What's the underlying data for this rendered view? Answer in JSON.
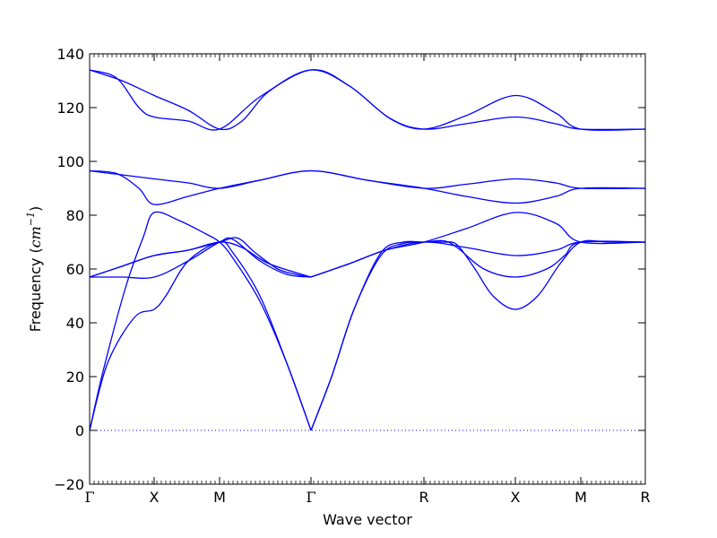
{
  "chart_data": {
    "type": "line",
    "title": "",
    "xlabel": "Wave vector",
    "ylabel": {
      "prefix": "Frequency (",
      "unit_base": "cm",
      "unit_exponent": "−1",
      "suffix": ")"
    },
    "ylim": [
      -20,
      140
    ],
    "yticks": [
      -20,
      0,
      20,
      40,
      60,
      80,
      100,
      120,
      140
    ],
    "ytick_labels": [
      "−20",
      "0",
      "20",
      "40",
      "60",
      "80",
      "100",
      "120",
      "140"
    ],
    "xlim": [
      0,
      6.2
    ],
    "q_points": [
      {
        "label": "Γ",
        "x": 0
      },
      {
        "label": "X",
        "x": 0.72
      },
      {
        "label": "M",
        "x": 1.45
      },
      {
        "label": "Γ",
        "x": 2.47
      },
      {
        "label": "R",
        "x": 3.73
      },
      {
        "label": "X",
        "x": 4.75
      },
      {
        "label": "M",
        "x": 5.48
      },
      {
        "label": "R",
        "x": 6.2
      }
    ],
    "minor_ticks_per_unit": 20,
    "zero_line": {
      "y": 0,
      "style": "dotted"
    },
    "line_color": "#0000ff",
    "series": [
      {
        "points": [
          [
            0,
            0
          ],
          [
            0.2,
            25
          ],
          [
            0.5,
            42
          ],
          [
            0.72,
            45
          ],
          [
            0.85,
            50
          ],
          [
            1.1,
            63
          ],
          [
            1.45,
            70
          ],
          [
            1.6,
            66
          ],
          [
            1.9,
            50
          ],
          [
            2.2,
            25
          ],
          [
            2.47,
            0
          ]
        ]
      },
      {
        "points": [
          [
            0,
            0
          ],
          [
            0.15,
            22
          ],
          [
            0.4,
            53
          ],
          [
            0.6,
            72
          ],
          [
            0.72,
            81
          ],
          [
            1.0,
            78
          ],
          [
            1.3,
            73
          ],
          [
            1.45,
            70
          ],
          [
            1.6,
            64
          ],
          [
            1.9,
            48
          ],
          [
            2.2,
            25
          ],
          [
            2.47,
            0
          ]
        ]
      },
      {
        "points": [
          [
            0,
            57
          ],
          [
            0.36,
            57
          ],
          [
            0.72,
            57
          ],
          [
            1.1,
            63
          ],
          [
            1.45,
            70
          ],
          [
            1.6,
            71
          ],
          [
            1.9,
            63
          ],
          [
            2.2,
            58
          ],
          [
            2.47,
            57
          ]
        ]
      },
      {
        "points": [
          [
            0,
            57
          ],
          [
            0.36,
            61
          ],
          [
            0.72,
            65
          ],
          [
            1.1,
            67
          ],
          [
            1.45,
            70
          ],
          [
            1.65,
            71.5
          ],
          [
            1.85,
            66
          ],
          [
            2.1,
            60
          ],
          [
            2.3,
            58
          ],
          [
            2.47,
            57
          ]
        ]
      },
      {
        "points": [
          [
            0,
            57
          ],
          [
            0.36,
            61
          ],
          [
            0.72,
            65
          ],
          [
            1.1,
            67
          ],
          [
            1.45,
            70
          ],
          [
            1.7,
            68
          ],
          [
            2.0,
            62
          ],
          [
            2.47,
            57
          ]
        ]
      },
      {
        "points": [
          [
            2.47,
            0
          ],
          [
            2.7,
            20
          ],
          [
            2.95,
            45
          ],
          [
            3.25,
            65
          ],
          [
            3.5,
            69.5
          ],
          [
            3.73,
            70
          ],
          [
            3.95,
            70
          ],
          [
            4.1,
            69
          ],
          [
            4.3,
            60
          ],
          [
            4.5,
            50
          ],
          [
            4.75,
            45
          ],
          [
            5.0,
            50
          ],
          [
            5.25,
            62
          ],
          [
            5.48,
            70
          ],
          [
            5.8,
            70
          ],
          [
            6.2,
            70
          ]
        ]
      },
      {
        "points": [
          [
            2.47,
            0
          ],
          [
            2.7,
            20
          ],
          [
            2.95,
            45
          ],
          [
            3.25,
            66
          ],
          [
            3.5,
            70
          ],
          [
            3.73,
            70
          ],
          [
            3.95,
            70.5
          ],
          [
            4.1,
            68
          ],
          [
            4.4,
            60
          ],
          [
            4.75,
            57
          ],
          [
            5.1,
            60
          ],
          [
            5.3,
            65
          ],
          [
            5.48,
            70
          ],
          [
            6.2,
            70
          ]
        ]
      },
      {
        "points": [
          [
            2.47,
            57
          ],
          [
            2.9,
            62
          ],
          [
            3.3,
            67
          ],
          [
            3.73,
            70
          ],
          [
            4.2,
            68
          ],
          [
            4.75,
            65
          ],
          [
            5.2,
            67
          ],
          [
            5.48,
            70
          ],
          [
            6.2,
            70
          ]
        ]
      },
      {
        "points": [
          [
            2.47,
            57
          ],
          [
            2.9,
            62
          ],
          [
            3.3,
            67
          ],
          [
            3.73,
            70
          ],
          [
            4.2,
            75
          ],
          [
            4.75,
            81
          ],
          [
            5.2,
            77
          ],
          [
            5.48,
            70
          ],
          [
            6.2,
            70
          ]
        ]
      },
      {
        "points": [
          [
            0,
            96.5
          ],
          [
            0.3,
            95.5
          ],
          [
            0.55,
            90
          ],
          [
            0.72,
            84
          ],
          [
            1.1,
            87
          ],
          [
            1.45,
            90
          ],
          [
            1.9,
            93
          ],
          [
            2.47,
            96.5
          ],
          [
            3.1,
            93
          ],
          [
            3.73,
            90
          ],
          [
            4.2,
            87
          ],
          [
            4.75,
            84.5
          ],
          [
            5.2,
            87
          ],
          [
            5.48,
            90
          ],
          [
            6.2,
            90
          ]
        ]
      },
      {
        "points": [
          [
            0,
            96.5
          ],
          [
            0.36,
            95
          ],
          [
            0.72,
            93.5
          ],
          [
            1.1,
            92
          ],
          [
            1.45,
            90
          ],
          [
            1.9,
            93
          ],
          [
            2.47,
            96.5
          ],
          [
            3.1,
            93
          ],
          [
            3.73,
            90
          ],
          [
            4.2,
            91.5
          ],
          [
            4.75,
            93.5
          ],
          [
            5.2,
            92
          ],
          [
            5.48,
            90
          ],
          [
            6.2,
            90
          ]
        ]
      },
      {
        "points": [
          [
            0,
            134
          ],
          [
            0.3,
            131
          ],
          [
            0.55,
            120
          ],
          [
            0.72,
            116.5
          ],
          [
            1.1,
            115
          ],
          [
            1.45,
            112
          ],
          [
            1.9,
            124
          ],
          [
            2.47,
            134
          ],
          [
            2.9,
            128
          ],
          [
            3.35,
            116
          ],
          [
            3.73,
            112
          ],
          [
            4.2,
            114
          ],
          [
            4.75,
            116.5
          ],
          [
            5.2,
            114
          ],
          [
            5.48,
            112
          ],
          [
            6.2,
            112
          ]
        ]
      },
      {
        "points": [
          [
            0,
            134
          ],
          [
            0.36,
            130
          ],
          [
            0.72,
            124.5
          ],
          [
            1.1,
            119
          ],
          [
            1.45,
            112
          ],
          [
            1.7,
            115
          ],
          [
            2.0,
            126
          ],
          [
            2.47,
            134
          ],
          [
            2.9,
            128
          ],
          [
            3.35,
            116
          ],
          [
            3.73,
            112
          ],
          [
            4.2,
            117
          ],
          [
            4.75,
            124.5
          ],
          [
            5.2,
            118
          ],
          [
            5.48,
            112
          ],
          [
            6.2,
            112
          ]
        ]
      }
    ]
  }
}
